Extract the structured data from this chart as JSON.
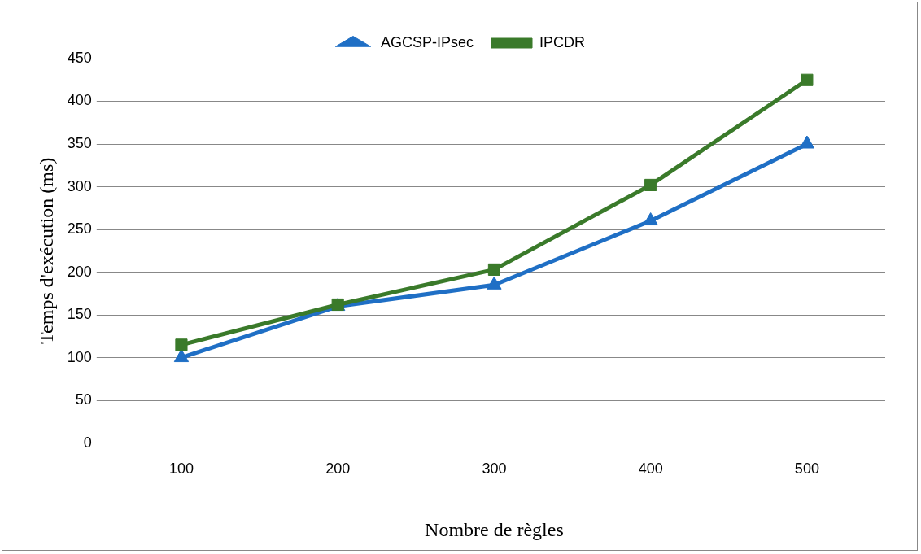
{
  "chart_data": {
    "type": "line",
    "xlabel": "Nombre de règles",
    "ylabel": "Temps d'exécution (ms)",
    "categories": [
      "100",
      "200",
      "300",
      "400",
      "500"
    ],
    "series": [
      {
        "name": "AGCSP-IPsec",
        "color": "#1f6fc5",
        "marker": "triangle",
        "values": [
          100,
          160,
          185,
          260,
          350
        ]
      },
      {
        "name": "IPCDR",
        "color": "#3a7a2a",
        "marker": "square",
        "values": [
          115,
          162,
          203,
          302,
          425
        ]
      }
    ],
    "ylim": [
      0,
      450
    ],
    "yticks": [
      0,
      50,
      100,
      150,
      200,
      250,
      300,
      350,
      400,
      450
    ],
    "grid": "y",
    "legend": "top"
  }
}
